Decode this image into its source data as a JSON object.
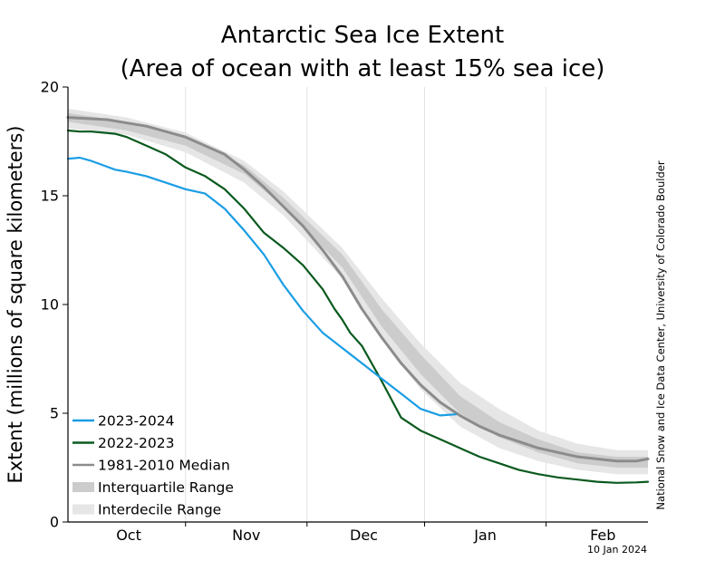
{
  "chart_data": {
    "type": "line",
    "title": "Antarctic Sea Ice Extent",
    "subtitle": "(Area of ocean with at least 15% sea ice)",
    "ylabel": "Extent (millions of square kilometers)",
    "xlabel": "",
    "ylim": [
      0,
      20
    ],
    "yticks": [
      0,
      5,
      10,
      15,
      20
    ],
    "xlim": [
      0,
      148
    ],
    "month_ticks": [
      {
        "label": "Oct",
        "x": 15.5
      },
      {
        "label": "Nov",
        "x": 45.5
      },
      {
        "label": "Dec",
        "x": 75.5
      },
      {
        "label": "Jan",
        "x": 106.5
      },
      {
        "label": "Feb",
        "x": 136.5
      }
    ],
    "month_boundaries": [
      30,
      61,
      91,
      122
    ],
    "grid": "vertical",
    "legend_position": "bottom-left",
    "credit": "National Snow and Ice Data Center, University of Colorado Boulder",
    "date_stamp": "10 Jan 2024",
    "series": [
      {
        "name": "Interdecile Range",
        "type": "band",
        "color": "#e6e6e6",
        "x": [
          0,
          15,
          30,
          45,
          55,
          70,
          80,
          90,
          100,
          110,
          120,
          130,
          140,
          148
        ],
        "lower": [
          18.1,
          17.8,
          17.0,
          15.6,
          14.1,
          11.2,
          8.4,
          6.1,
          4.4,
          3.4,
          2.8,
          2.4,
          2.2,
          2.2
        ],
        "upper": [
          19.0,
          18.6,
          17.9,
          16.6,
          15.2,
          12.6,
          10.3,
          8.2,
          6.4,
          5.2,
          4.2,
          3.6,
          3.3,
          3.3
        ]
      },
      {
        "name": "Interquartile Range",
        "type": "band",
        "color": "#cccccc",
        "x": [
          0,
          15,
          30,
          45,
          55,
          70,
          80,
          90,
          100,
          110,
          120,
          130,
          140,
          148
        ],
        "lower": [
          18.4,
          18.0,
          17.3,
          16.0,
          14.5,
          11.7,
          9.0,
          6.8,
          5.0,
          3.9,
          3.2,
          2.7,
          2.5,
          2.5
        ],
        "upper": [
          18.8,
          18.4,
          17.7,
          16.4,
          14.9,
          12.3,
          9.8,
          7.7,
          5.8,
          4.6,
          3.8,
          3.2,
          3.0,
          3.0
        ]
      },
      {
        "name": "1981-2010 Median",
        "type": "line",
        "color": "#8c8c8c",
        "x": [
          0,
          10,
          20,
          30,
          40,
          45,
          50,
          55,
          60,
          65,
          70,
          75,
          80,
          85,
          90,
          95,
          100,
          105,
          110,
          115,
          120,
          125,
          130,
          135,
          140,
          145,
          148
        ],
        "y": [
          18.6,
          18.5,
          18.2,
          17.7,
          16.9,
          16.2,
          15.4,
          14.5,
          13.6,
          12.5,
          11.3,
          9.8,
          8.5,
          7.3,
          6.3,
          5.5,
          4.9,
          4.4,
          4.0,
          3.7,
          3.4,
          3.2,
          3.0,
          2.9,
          2.8,
          2.8,
          2.9
        ]
      },
      {
        "name": "2022-2023",
        "type": "line",
        "color": "#0a5a1e",
        "x": [
          0,
          3,
          6,
          9,
          12,
          15,
          20,
          25,
          30,
          35,
          40,
          45,
          50,
          55,
          60,
          65,
          68,
          70,
          72,
          75,
          80,
          85,
          90,
          95,
          100,
          105,
          110,
          115,
          120,
          125,
          130,
          135,
          140,
          145,
          148
        ],
        "y": [
          18.0,
          17.95,
          17.95,
          17.9,
          17.85,
          17.7,
          17.3,
          16.9,
          16.3,
          15.9,
          15.3,
          14.4,
          13.3,
          12.6,
          11.8,
          10.7,
          9.8,
          9.3,
          8.7,
          8.1,
          6.5,
          4.8,
          4.2,
          3.8,
          3.4,
          3.0,
          2.7,
          2.4,
          2.2,
          2.05,
          1.95,
          1.85,
          1.8,
          1.82,
          1.85
        ]
      },
      {
        "name": "2023-2024",
        "type": "line",
        "color": "#1a9de4",
        "x": [
          0,
          3,
          6,
          9,
          12,
          15,
          20,
          25,
          30,
          35,
          40,
          45,
          50,
          55,
          60,
          65,
          70,
          75,
          80,
          85,
          90,
          95,
          99
        ],
        "y": [
          16.7,
          16.75,
          16.6,
          16.4,
          16.2,
          16.1,
          15.9,
          15.6,
          15.3,
          15.1,
          14.4,
          13.4,
          12.3,
          10.9,
          9.7,
          8.7,
          8.0,
          7.3,
          6.6,
          5.9,
          5.2,
          4.9,
          4.95
        ]
      }
    ],
    "legend": [
      {
        "label": "2023-2024",
        "color": "#1a9de4",
        "style": "line"
      },
      {
        "label": "2022-2023",
        "color": "#0a5a1e",
        "style": "line"
      },
      {
        "label": "1981-2010 Median",
        "color": "#8c8c8c",
        "style": "line"
      },
      {
        "label": "Interquartile Range",
        "color": "#cccccc",
        "style": "band"
      },
      {
        "label": "Interdecile Range",
        "color": "#e6e6e6",
        "style": "band"
      }
    ]
  }
}
